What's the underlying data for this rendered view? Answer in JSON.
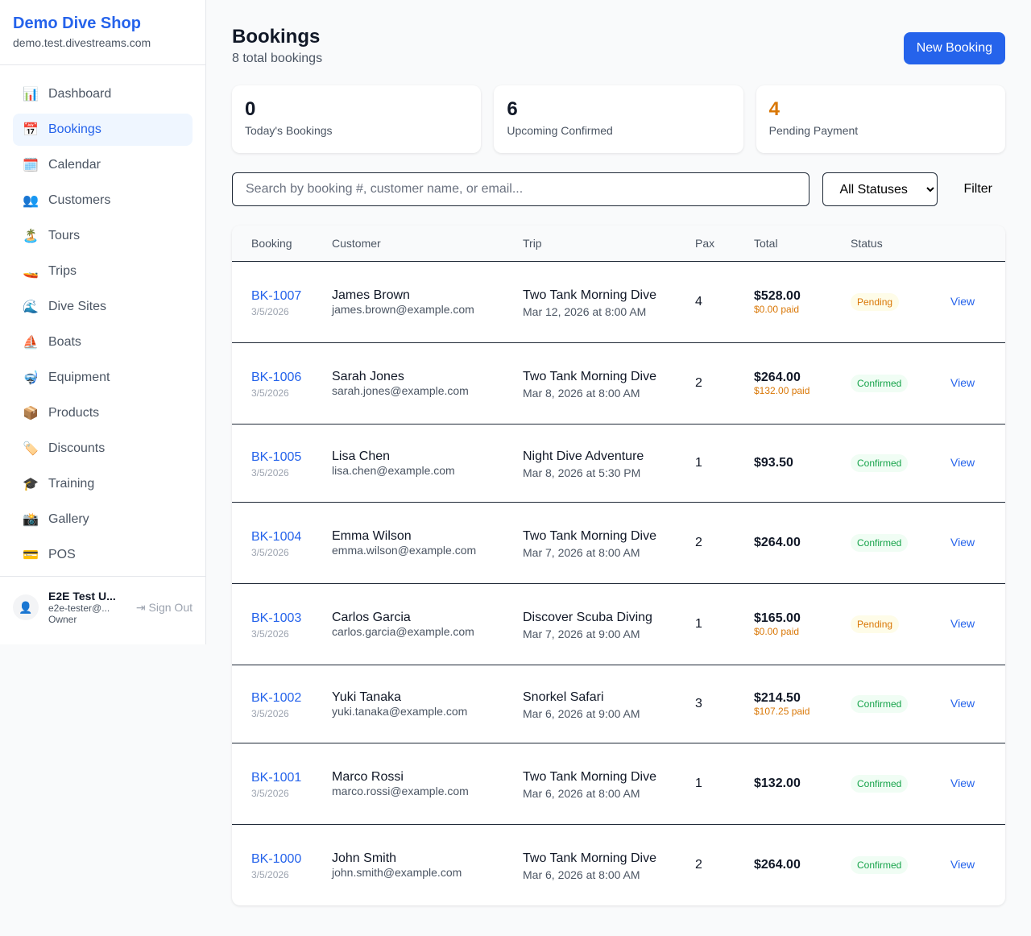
{
  "shop": {
    "name": "Demo Dive Shop",
    "domain": "demo.test.divestreams.com"
  },
  "nav": [
    {
      "label": "Dashboard",
      "icon": "📊",
      "name": "chart-icon"
    },
    {
      "label": "Bookings",
      "icon": "📅",
      "name": "calendar-icon",
      "active": true
    },
    {
      "label": "Calendar",
      "icon": "🗓️",
      "name": "spiral-calendar-icon"
    },
    {
      "label": "Customers",
      "icon": "👥",
      "name": "users-icon"
    },
    {
      "label": "Tours",
      "icon": "🏝️",
      "name": "island-icon"
    },
    {
      "label": "Trips",
      "icon": "🚤",
      "name": "speedboat-icon"
    },
    {
      "label": "Dive Sites",
      "icon": "🌊",
      "name": "wave-icon"
    },
    {
      "label": "Boats",
      "icon": "⛵",
      "name": "sailboat-icon"
    },
    {
      "label": "Equipment",
      "icon": "🤿",
      "name": "diving-mask-icon"
    },
    {
      "label": "Products",
      "icon": "📦",
      "name": "package-icon"
    },
    {
      "label": "Discounts",
      "icon": "🏷️",
      "name": "tag-icon"
    },
    {
      "label": "Training",
      "icon": "🎓",
      "name": "graduation-cap-icon"
    },
    {
      "label": "Gallery",
      "icon": "📸",
      "name": "camera-icon"
    },
    {
      "label": "POS",
      "icon": "💳",
      "name": "credit-card-icon"
    }
  ],
  "user": {
    "name": "E2E Test U...",
    "email": "e2e-tester@...",
    "role": "Owner",
    "sign_out": "Sign Out"
  },
  "page": {
    "title": "Bookings",
    "subtitle": "8 total bookings",
    "new_button": "New Booking"
  },
  "stats": [
    {
      "value": "0",
      "label": "Today's Bookings",
      "color": "#111827"
    },
    {
      "value": "6",
      "label": "Upcoming Confirmed",
      "color": "#111827"
    },
    {
      "value": "4",
      "label": "Pending Payment",
      "color": "#d97706"
    }
  ],
  "filters": {
    "search_placeholder": "Search by booking #, customer name, or email...",
    "status_selected": "All Statuses",
    "filter_label": "Filter"
  },
  "table": {
    "headers": [
      "Booking",
      "Customer",
      "Trip",
      "Pax",
      "Total",
      "Status",
      ""
    ],
    "rows": [
      {
        "id": "BK-1007",
        "date": "3/5/2026",
        "customer": "James Brown",
        "email": "james.brown@example.com",
        "trip": "Two Tank Morning Dive",
        "when": "Mar 12, 2026 at 8:00 AM",
        "pax": "4",
        "total": "$528.00",
        "paid": "$0.00 paid",
        "status": "Pending",
        "action": "View"
      },
      {
        "id": "BK-1006",
        "date": "3/5/2026",
        "customer": "Sarah Jones",
        "email": "sarah.jones@example.com",
        "trip": "Two Tank Morning Dive",
        "when": "Mar 8, 2026 at 8:00 AM",
        "pax": "2",
        "total": "$264.00",
        "paid": "$132.00 paid",
        "status": "Confirmed",
        "action": "View"
      },
      {
        "id": "BK-1005",
        "date": "3/5/2026",
        "customer": "Lisa Chen",
        "email": "lisa.chen@example.com",
        "trip": "Night Dive Adventure",
        "when": "Mar 8, 2026 at 5:30 PM",
        "pax": "1",
        "total": "$93.50",
        "paid": null,
        "status": "Confirmed",
        "action": "View"
      },
      {
        "id": "BK-1004",
        "date": "3/5/2026",
        "customer": "Emma Wilson",
        "email": "emma.wilson@example.com",
        "trip": "Two Tank Morning Dive",
        "when": "Mar 7, 2026 at 8:00 AM",
        "pax": "2",
        "total": "$264.00",
        "paid": null,
        "status": "Confirmed",
        "action": "View"
      },
      {
        "id": "BK-1003",
        "date": "3/5/2026",
        "customer": "Carlos Garcia",
        "email": "carlos.garcia@example.com",
        "trip": "Discover Scuba Diving",
        "when": "Mar 7, 2026 at 9:00 AM",
        "pax": "1",
        "total": "$165.00",
        "paid": "$0.00 paid",
        "status": "Pending",
        "action": "View"
      },
      {
        "id": "BK-1002",
        "date": "3/5/2026",
        "customer": "Yuki Tanaka",
        "email": "yuki.tanaka@example.com",
        "trip": "Snorkel Safari",
        "when": "Mar 6, 2026 at 9:00 AM",
        "pax": "3",
        "total": "$214.50",
        "paid": "$107.25 paid",
        "status": "Confirmed",
        "action": "View"
      },
      {
        "id": "BK-1001",
        "date": "3/5/2026",
        "customer": "Marco Rossi",
        "email": "marco.rossi@example.com",
        "trip": "Two Tank Morning Dive",
        "when": "Mar 6, 2026 at 8:00 AM",
        "pax": "1",
        "total": "$132.00",
        "paid": null,
        "status": "Confirmed",
        "action": "View"
      },
      {
        "id": "BK-1000",
        "date": "3/5/2026",
        "customer": "John Smith",
        "email": "john.smith@example.com",
        "trip": "Two Tank Morning Dive",
        "when": "Mar 6, 2026 at 8:00 AM",
        "pax": "2",
        "total": "$264.00",
        "paid": null,
        "status": "Confirmed",
        "action": "View"
      }
    ]
  },
  "status_colors": {
    "Pending": {
      "bg": "#fefce8",
      "fg": "#d97706"
    },
    "Confirmed": {
      "bg": "#f0fdf4",
      "fg": "#16a34a"
    }
  }
}
